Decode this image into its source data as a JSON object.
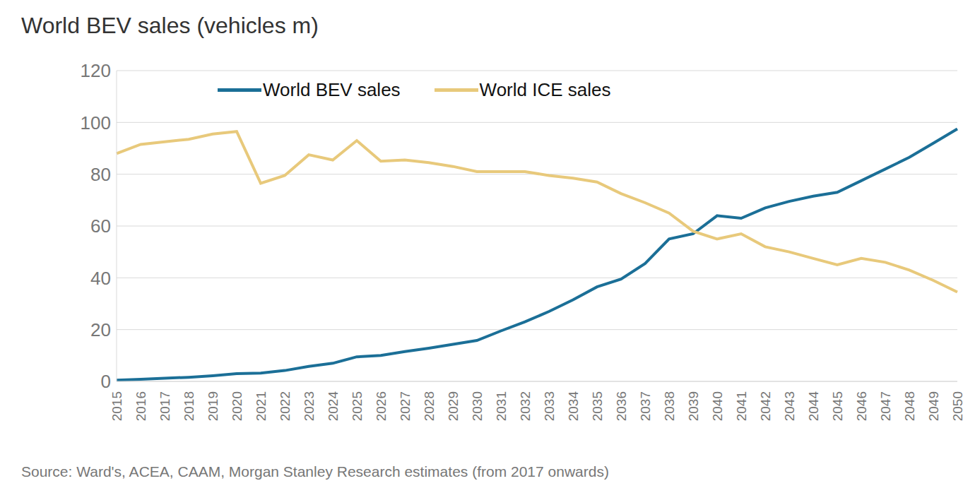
{
  "chart_data": {
    "type": "line",
    "title": "World BEV sales (vehicles m)",
    "source": "Source: Ward's, ACEA, CAAM, Morgan Stanley Research estimates (from 2017 onwards)",
    "categories": [
      "2015",
      "2016",
      "2017",
      "2018",
      "2019",
      "2020",
      "2021",
      "2022",
      "2023",
      "2024",
      "2025",
      "2026",
      "2027",
      "2028",
      "2029",
      "2030",
      "2031",
      "2032",
      "2033",
      "2034",
      "2035",
      "2036",
      "2037",
      "2038",
      "2039",
      "2040",
      "2041",
      "2042",
      "2043",
      "2044",
      "2045",
      "2046",
      "2047",
      "2048",
      "2049",
      "2050"
    ],
    "series": [
      {
        "name": "World BEV sales",
        "color": "#1b6f97",
        "values": [
          0.5,
          0.8,
          1.2,
          1.6,
          2.2,
          3.0,
          3.2,
          4.2,
          5.8,
          7.0,
          9.5,
          10.0,
          11.5,
          12.8,
          14.3,
          15.8,
          19.5,
          23,
          27,
          31.5,
          36.5,
          39.5,
          45.5,
          55,
          57,
          64,
          63,
          67,
          69.5,
          71.5,
          73,
          77.5,
          82,
          86.5,
          92,
          97.5
        ]
      },
      {
        "name": "World ICE sales",
        "color": "#e8c97b",
        "values": [
          88,
          91.5,
          92.5,
          93.5,
          95.5,
          96.5,
          76.5,
          79.5,
          87.5,
          85.5,
          93,
          85,
          85.5,
          84.5,
          83,
          81,
          81,
          81,
          79.5,
          78.5,
          77,
          72.5,
          69,
          65,
          58,
          55,
          57,
          52,
          50,
          47.5,
          45,
          47.5,
          46,
          43,
          39,
          34.5
        ]
      }
    ],
    "ylim": [
      0,
      120
    ],
    "yticks": [
      0,
      20,
      40,
      60,
      80,
      100,
      120
    ],
    "grid": true,
    "legend": "top"
  }
}
